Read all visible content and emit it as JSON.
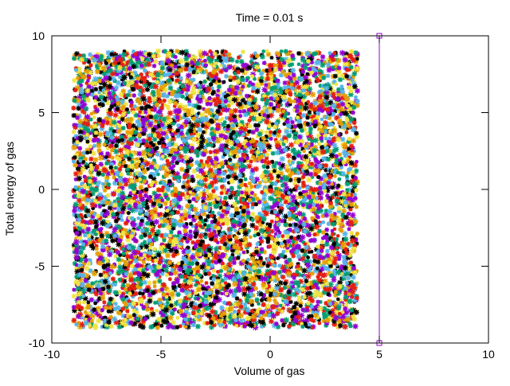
{
  "chart_data": {
    "type": "scatter",
    "title": "Time =  0.01 s",
    "xlabel": "Volume of gas",
    "ylabel": "Total energy of gas",
    "xlim": [
      -10,
      10
    ],
    "ylim": [
      -10,
      10
    ],
    "xticks": [
      -10,
      -5,
      0,
      5,
      10
    ],
    "yticks": [
      -10,
      -5,
      0,
      5,
      10
    ],
    "xtick_labels": [
      "-10",
      "-5",
      "0",
      "5",
      "10"
    ],
    "ytick_labels": [
      "-10",
      "-5",
      "0",
      "5",
      "10"
    ],
    "grid": false,
    "legend": "none",
    "particle_region": {
      "x": [
        -9,
        4
      ],
      "y": [
        -9,
        9
      ]
    },
    "particle_colors": [
      "#9400d3",
      "#009e73",
      "#56b4e9",
      "#e69f00",
      "#f0e442",
      "#e51e10",
      "#000000"
    ],
    "piston": {
      "x": 5,
      "y": [
        -10,
        10
      ],
      "color": "#9400d3"
    }
  }
}
